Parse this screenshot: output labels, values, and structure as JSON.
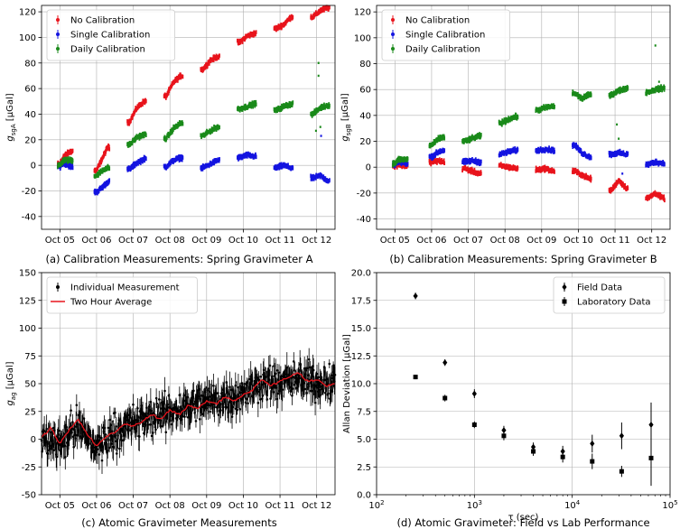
{
  "chart_data": [
    {
      "id": "a",
      "type": "scatter",
      "caption": "(a) Calibration Measurements: Spring Gravimeter A",
      "ylabel_main": "g",
      "ylabel_sub": "sgA",
      "ylabel_unit": "[μGal]",
      "xlim": [
        0,
        8
      ],
      "ylim": [
        -50,
        125
      ],
      "yticks": [
        -40,
        -20,
        0,
        20,
        40,
        60,
        80,
        100,
        120
      ],
      "xticks": [
        "Oct 05",
        "Oct 06",
        "Oct 07",
        "Oct 08",
        "Oct 09",
        "Oct 10",
        "Oct 11",
        "Oct 12"
      ],
      "legend_position": "top-left",
      "grid": true,
      "series": [
        {
          "name": "No Calibration",
          "color": "#e8141c",
          "points": [
            [
              0.5,
              1
            ],
            [
              0.6,
              7
            ],
            [
              0.8,
              11
            ],
            [
              1.5,
              -4
            ],
            [
              1.7,
              8
            ],
            [
              1.8,
              14
            ],
            [
              2.4,
              34
            ],
            [
              2.6,
              45
            ],
            [
              2.8,
              50
            ],
            [
              3.4,
              54
            ],
            [
              3.6,
              65
            ],
            [
              3.8,
              70
            ],
            [
              4.4,
              75
            ],
            [
              4.6,
              82
            ],
            [
              4.8,
              85
            ],
            [
              5.4,
              96
            ],
            [
              5.6,
              101
            ],
            [
              5.8,
              103
            ],
            [
              6.4,
              107
            ],
            [
              6.6,
              110
            ],
            [
              6.8,
              116
            ],
            [
              7.4,
              116
            ],
            [
              7.6,
              121
            ],
            [
              7.8,
              123
            ]
          ]
        },
        {
          "name": "Single Calibration",
          "color": "#1414e0",
          "points": [
            [
              0.5,
              -1
            ],
            [
              0.6,
              2
            ],
            [
              0.8,
              -1
            ],
            [
              1.5,
              -21
            ],
            [
              1.7,
              -16
            ],
            [
              1.8,
              -13
            ],
            [
              2.4,
              -3
            ],
            [
              2.6,
              2
            ],
            [
              2.8,
              5
            ],
            [
              3.4,
              -1
            ],
            [
              3.6,
              4
            ],
            [
              3.8,
              6
            ],
            [
              4.4,
              -2
            ],
            [
              4.6,
              1
            ],
            [
              4.8,
              4
            ],
            [
              5.4,
              6
            ],
            [
              5.6,
              8
            ],
            [
              5.8,
              7
            ],
            [
              6.4,
              -2
            ],
            [
              6.6,
              0
            ],
            [
              6.8,
              -2
            ],
            [
              7.4,
              -10
            ],
            [
              7.6,
              -8
            ],
            [
              7.8,
              -12
            ]
          ]
        },
        {
          "name": "Daily Calibration",
          "color": "#1a8a1a",
          "points": [
            [
              0.5,
              0
            ],
            [
              0.6,
              4
            ],
            [
              0.8,
              4
            ],
            [
              1.5,
              -8
            ],
            [
              1.7,
              -3
            ],
            [
              1.8,
              -2
            ],
            [
              2.4,
              16
            ],
            [
              2.6,
              22
            ],
            [
              2.8,
              24
            ],
            [
              3.4,
              21
            ],
            [
              3.6,
              29
            ],
            [
              3.8,
              33
            ],
            [
              4.4,
              23
            ],
            [
              4.6,
              27
            ],
            [
              4.8,
              30
            ],
            [
              5.4,
              44
            ],
            [
              5.6,
              46
            ],
            [
              5.8,
              48
            ],
            [
              6.4,
              43
            ],
            [
              6.6,
              46
            ],
            [
              6.8,
              48
            ],
            [
              7.4,
              40
            ],
            [
              7.6,
              45
            ],
            [
              7.8,
              47
            ]
          ]
        }
      ]
    },
    {
      "id": "b",
      "type": "scatter",
      "caption": "(b) Calibration Measurements: Spring Gravimeter B",
      "ylabel_main": "g",
      "ylabel_sub": "sgB",
      "ylabel_unit": "[μGal]",
      "xlim": [
        0,
        8
      ],
      "ylim": [
        -48,
        125
      ],
      "yticks": [
        -40,
        -20,
        0,
        20,
        40,
        60,
        80,
        100,
        120
      ],
      "xticks": [
        "Oct 05",
        "Oct 06",
        "Oct 07",
        "Oct 08",
        "Oct 09",
        "Oct 10",
        "Oct 11",
        "Oct 12"
      ],
      "legend_position": "top-left",
      "grid": true,
      "series": [
        {
          "name": "No Calibration",
          "color": "#e8141c",
          "points": [
            [
              0.5,
              1
            ],
            [
              0.6,
              2
            ],
            [
              0.8,
              1
            ],
            [
              1.5,
              4
            ],
            [
              1.7,
              5
            ],
            [
              1.8,
              4
            ],
            [
              2.4,
              -1
            ],
            [
              2.6,
              -3
            ],
            [
              2.8,
              -5
            ],
            [
              3.4,
              1
            ],
            [
              3.6,
              0
            ],
            [
              3.8,
              -1
            ],
            [
              4.4,
              -2
            ],
            [
              4.6,
              -1
            ],
            [
              4.8,
              -3
            ],
            [
              5.4,
              -3
            ],
            [
              5.6,
              -6
            ],
            [
              5.8,
              -9
            ],
            [
              6.4,
              -18
            ],
            [
              6.6,
              -10
            ],
            [
              6.8,
              -16
            ],
            [
              7.4,
              -24
            ],
            [
              7.6,
              -20
            ],
            [
              7.8,
              -24
            ]
          ]
        },
        {
          "name": "Single Calibration",
          "color": "#1414e0",
          "points": [
            [
              0.5,
              2
            ],
            [
              0.6,
              4
            ],
            [
              0.8,
              3
            ],
            [
              1.5,
              8
            ],
            [
              1.7,
              12
            ],
            [
              1.8,
              13
            ],
            [
              2.4,
              4
            ],
            [
              2.6,
              5
            ],
            [
              2.8,
              4
            ],
            [
              3.4,
              10
            ],
            [
              3.6,
              12
            ],
            [
              3.8,
              13
            ],
            [
              4.4,
              13
            ],
            [
              4.6,
              14
            ],
            [
              4.8,
              13
            ],
            [
              5.4,
              17
            ],
            [
              5.6,
              11
            ],
            [
              5.8,
              8
            ],
            [
              6.4,
              10
            ],
            [
              6.6,
              11
            ],
            [
              6.8,
              10
            ],
            [
              7.4,
              2
            ],
            [
              7.6,
              4
            ],
            [
              7.8,
              3
            ]
          ]
        },
        {
          "name": "Daily Calibration",
          "color": "#1a8a1a",
          "points": [
            [
              0.5,
              3
            ],
            [
              0.6,
              6
            ],
            [
              0.8,
              6
            ],
            [
              1.5,
              17
            ],
            [
              1.7,
              22
            ],
            [
              1.8,
              23
            ],
            [
              2.4,
              20
            ],
            [
              2.6,
              22
            ],
            [
              2.8,
              24
            ],
            [
              3.4,
              34
            ],
            [
              3.6,
              37
            ],
            [
              3.8,
              39
            ],
            [
              4.4,
              44
            ],
            [
              4.6,
              46
            ],
            [
              4.8,
              47
            ],
            [
              5.4,
              57
            ],
            [
              5.6,
              53
            ],
            [
              5.8,
              56
            ],
            [
              6.4,
              56
            ],
            [
              6.6,
              59
            ],
            [
              6.8,
              61
            ],
            [
              7.4,
              58
            ],
            [
              7.6,
              60
            ],
            [
              7.8,
              61
            ]
          ]
        }
      ]
    },
    {
      "id": "c",
      "type": "line",
      "caption": "(c) Atomic Gravimeter Measurements",
      "ylabel_main": "g",
      "ylabel_sub": "ag",
      "ylabel_unit": "[μGal]",
      "xlim": [
        0,
        8
      ],
      "ylim": [
        -50,
        150
      ],
      "yticks": [
        -50,
        -25,
        0,
        25,
        50,
        75,
        100,
        125,
        150
      ],
      "xticks": [
        "Oct 05",
        "Oct 06",
        "Oct 07",
        "Oct 08",
        "Oct 09",
        "Oct 10",
        "Oct 11",
        "Oct 12"
      ],
      "legend_position": "top-left",
      "grid": true,
      "series": [
        {
          "name": "Individual Measurement",
          "color": "#000000",
          "spread": 25,
          "points": [
            [
              0.0,
              0
            ],
            [
              0.5,
              -2
            ],
            [
              1.0,
              12
            ],
            [
              1.5,
              -8
            ],
            [
              2.0,
              8
            ],
            [
              2.5,
              14
            ],
            [
              3.0,
              20
            ],
            [
              3.5,
              24
            ],
            [
              4.0,
              30
            ],
            [
              4.5,
              34
            ],
            [
              5.0,
              38
            ],
            [
              5.5,
              40
            ],
            [
              6.0,
              52
            ],
            [
              6.5,
              50
            ],
            [
              7.0,
              54
            ],
            [
              7.5,
              52
            ],
            [
              8.0,
              50
            ]
          ]
        },
        {
          "name": "Two Hour Average",
          "color": "#e8141c",
          "points": [
            [
              0.0,
              2
            ],
            [
              0.25,
              10
            ],
            [
              0.5,
              -4
            ],
            [
              0.75,
              8
            ],
            [
              1.0,
              18
            ],
            [
              1.25,
              4
            ],
            [
              1.5,
              -6
            ],
            [
              1.75,
              2
            ],
            [
              2.0,
              6
            ],
            [
              2.25,
              14
            ],
            [
              2.5,
              12
            ],
            [
              2.75,
              16
            ],
            [
              3.0,
              22
            ],
            [
              3.25,
              18
            ],
            [
              3.5,
              26
            ],
            [
              3.75,
              22
            ],
            [
              4.0,
              30
            ],
            [
              4.25,
              28
            ],
            [
              4.5,
              34
            ],
            [
              4.75,
              32
            ],
            [
              5.0,
              38
            ],
            [
              5.25,
              34
            ],
            [
              5.5,
              40
            ],
            [
              5.75,
              44
            ],
            [
              6.0,
              54
            ],
            [
              6.25,
              48
            ],
            [
              6.5,
              52
            ],
            [
              6.75,
              56
            ],
            [
              7.0,
              60
            ],
            [
              7.25,
              52
            ],
            [
              7.5,
              54
            ],
            [
              7.75,
              48
            ],
            [
              8.0,
              50
            ]
          ]
        }
      ]
    },
    {
      "id": "d",
      "type": "scatter",
      "caption": "(d) Atomic Gravimeter: Field vs Lab Performance",
      "xlabel": "τ (sec)",
      "ylabel": "Allan Deviation [μGal]",
      "xscale": "log",
      "xlim": [
        100,
        100000
      ],
      "ylim": [
        0,
        20
      ],
      "yticks": [
        0.0,
        2.5,
        5.0,
        7.5,
        10.0,
        12.5,
        15.0,
        17.5,
        20.0
      ],
      "ytick_labels": [
        "0.0",
        "2.5",
        "5.0",
        "7.5",
        "10.0",
        "12.5",
        "15.0",
        "17.5",
        "20.0"
      ],
      "xticks": [
        100,
        1000,
        10000,
        100000
      ],
      "xtick_labels": [
        [
          "10",
          "2"
        ],
        [
          "10",
          "3"
        ],
        [
          "10",
          "4"
        ],
        [
          "10",
          "5"
        ]
      ],
      "legend_position": "top-right",
      "grid": true,
      "series": [
        {
          "name": "Field Data",
          "marker": "diamond",
          "color": "#000000",
          "points": [
            [
              250,
              17.9,
              0.3
            ],
            [
              500,
              11.9,
              0.3
            ],
            [
              1000,
              9.1,
              0.4
            ],
            [
              2000,
              5.8,
              0.4
            ],
            [
              4000,
              4.3,
              0.4
            ],
            [
              8000,
              3.9,
              0.5
            ],
            [
              16000,
              4.6,
              0.8
            ],
            [
              32000,
              5.3,
              1.2
            ],
            [
              64000,
              6.3,
              2.0
            ]
          ]
        },
        {
          "name": "Laboratory Data",
          "marker": "square",
          "color": "#000000",
          "points": [
            [
              250,
              10.6,
              0.2
            ],
            [
              500,
              8.7,
              0.3
            ],
            [
              1000,
              6.3,
              0.3
            ],
            [
              2000,
              5.3,
              0.4
            ],
            [
              4000,
              3.9,
              0.4
            ],
            [
              8000,
              3.4,
              0.5
            ],
            [
              16000,
              3.0,
              0.7
            ],
            [
              32000,
              2.1,
              0.5
            ],
            [
              64000,
              3.3,
              2.5
            ]
          ]
        }
      ]
    }
  ]
}
